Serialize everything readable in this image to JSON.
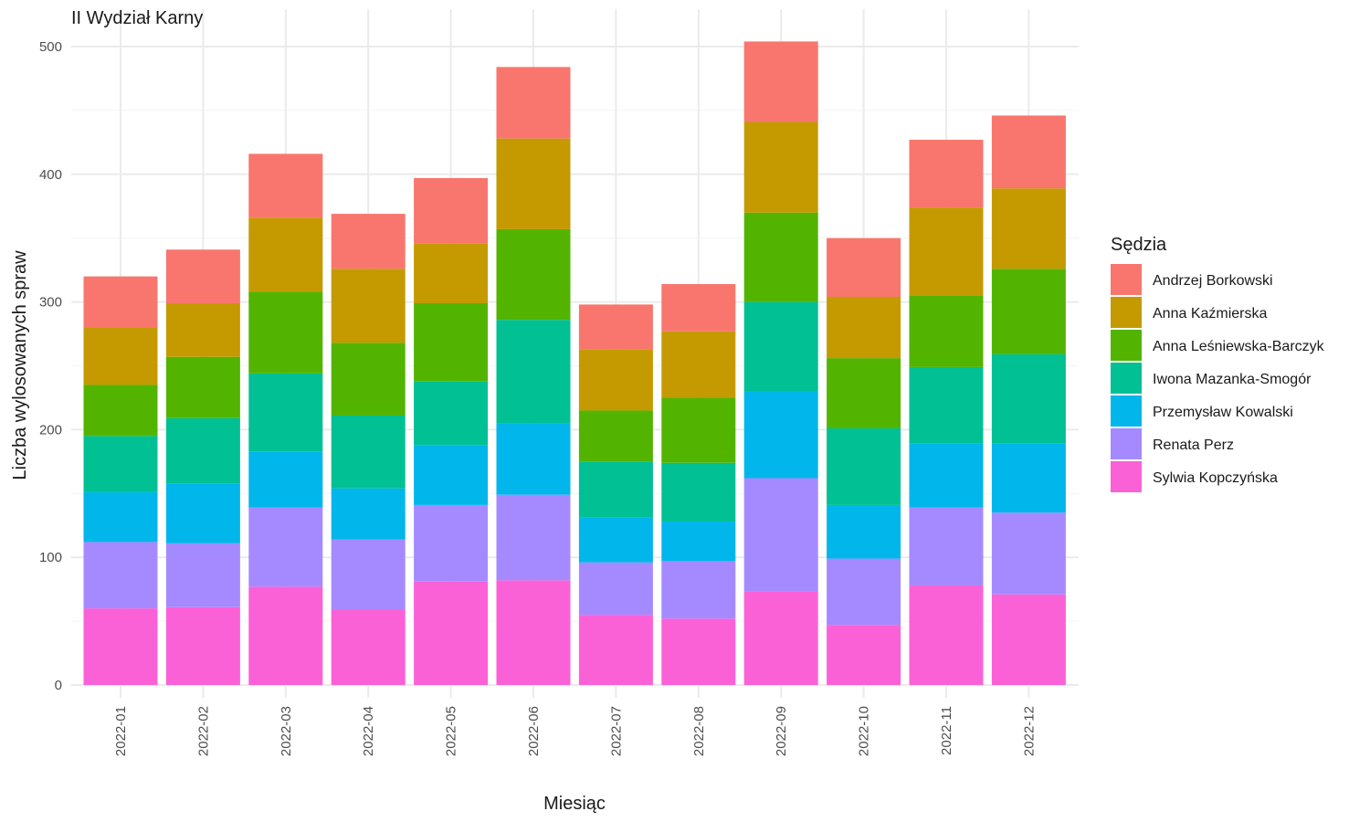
{
  "chart_data": {
    "type": "bar",
    "stacked": true,
    "title": "II Wydział Karny",
    "xlabel": "Miesiąc",
    "ylabel": "Liczba wylosowanych spraw",
    "legend_title": "Sędzia",
    "legend_position": "right",
    "grid": true,
    "ylim": [
      0,
      520
    ],
    "yticks": [
      0,
      100,
      200,
      300,
      400,
      500
    ],
    "categories": [
      "2022-01",
      "2022-02",
      "2022-03",
      "2022-04",
      "2022-05",
      "2022-06",
      "2022-07",
      "2022-08",
      "2022-09",
      "2022-10",
      "2022-11",
      "2022-12"
    ],
    "series": [
      {
        "name": "Sylwia Kopczyńska",
        "color": "#FB61D7",
        "values": [
          60,
          61,
          77,
          59,
          81,
          82,
          55,
          52,
          73,
          47,
          78,
          71
        ]
      },
      {
        "name": "Renata Perz",
        "color": "#A58AFF",
        "values": [
          52,
          50,
          62,
          55,
          60,
          67,
          41,
          45,
          89,
          52,
          61,
          64
        ]
      },
      {
        "name": "Przemysław Kowalski",
        "color": "#00B6EB",
        "values": [
          39,
          47,
          44,
          40,
          47,
          56,
          35,
          31,
          68,
          42,
          50,
          54
        ]
      },
      {
        "name": "Iwona Mazanka-Smogór",
        "color": "#00C094",
        "values": [
          44,
          51,
          61,
          57,
          50,
          81,
          44,
          46,
          70,
          60,
          60,
          70
        ]
      },
      {
        "name": "Anna Leśniewska-Barczyk",
        "color": "#53B400",
        "values": [
          40,
          48,
          64,
          57,
          61,
          71,
          40,
          51,
          70,
          55,
          56,
          67
        ]
      },
      {
        "name": "Anna Kaźmierska",
        "color": "#C49A00",
        "values": [
          45,
          42,
          58,
          58,
          47,
          71,
          48,
          52,
          71,
          48,
          69,
          63
        ]
      },
      {
        "name": "Andrzej Borkowski",
        "color": "#F8766D",
        "values": [
          40,
          42,
          50,
          43,
          51,
          56,
          35,
          37,
          63,
          46,
          53,
          57
        ]
      }
    ],
    "legend_order": [
      "Andrzej Borkowski",
      "Anna Kaźmierska",
      "Anna Leśniewska-Barczyk",
      "Iwona Mazanka-Smogór",
      "Przemysław Kowalski",
      "Renata Perz",
      "Sylwia Kopczyńska"
    ]
  }
}
